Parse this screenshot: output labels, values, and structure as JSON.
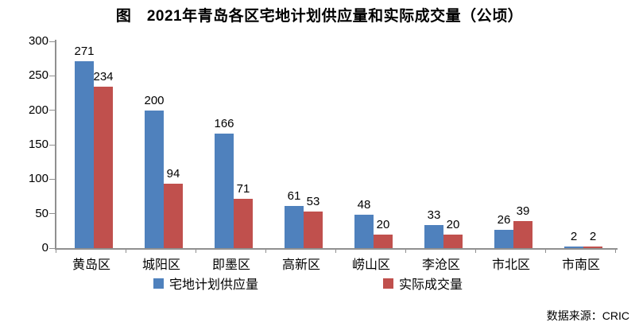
{
  "title": "图　2021年青岛各区宅地计划供应量和实际成交量（公顷）",
  "source": "数据来源：CRIC",
  "colors": {
    "series_planned": "#4F81BD",
    "series_actual": "#C0504D",
    "axis": "#909090",
    "background": "#FFFFFF",
    "text": "#000000"
  },
  "legend": {
    "items": [
      {
        "label": "宅地计划供应量",
        "swatch": "blue-square-icon"
      },
      {
        "label": "实际成交量",
        "swatch": "red-square-icon"
      }
    ],
    "position": "bottom"
  },
  "chart_data": {
    "type": "bar",
    "categories": [
      "黄岛区",
      "城阳区",
      "即墨区",
      "高新区",
      "崂山区",
      "李沧区",
      "市北区",
      "市南区"
    ],
    "series": [
      {
        "name": "宅地计划供应量",
        "color": "#4F81BD",
        "values": [
          271,
          200,
          166,
          61,
          48,
          33,
          26,
          2
        ]
      },
      {
        "name": "实际成交量",
        "color": "#C0504D",
        "values": [
          234,
          94,
          71,
          53,
          20,
          20,
          39,
          2
        ]
      }
    ],
    "title": "图　2021年青岛各区宅地计划供应量和实际成交量（公顷）",
    "xlabel": "",
    "ylabel": "",
    "ylim": [
      0,
      300
    ],
    "yticks": [
      0,
      50,
      100,
      150,
      200,
      250,
      300
    ],
    "grid": false,
    "data_labels": true,
    "legend_position": "bottom"
  }
}
